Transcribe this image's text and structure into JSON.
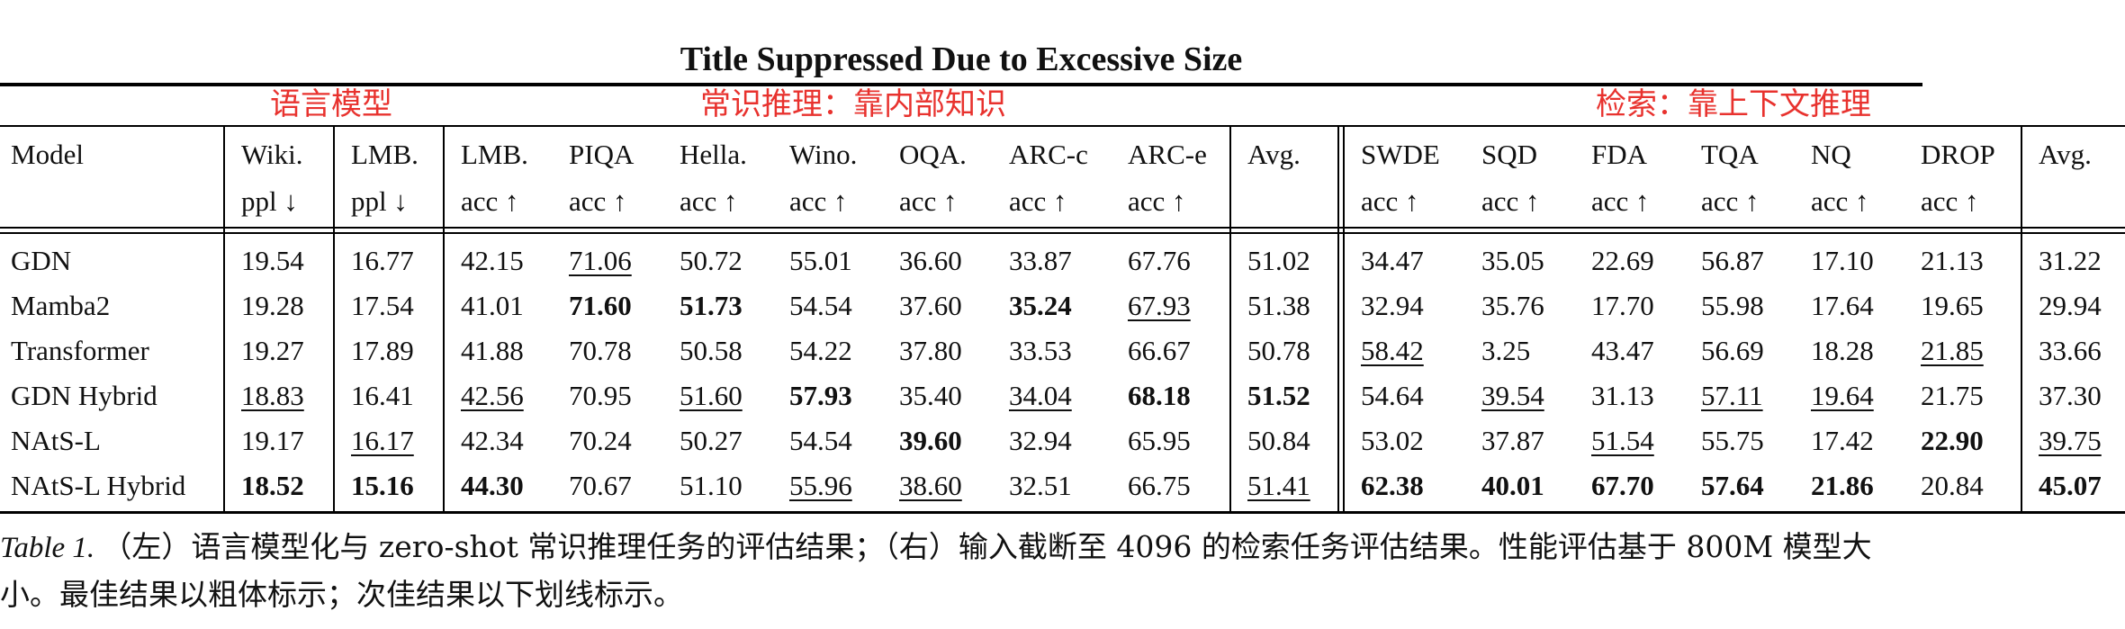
{
  "page_title": "Title Suppressed Due to Excessive Size",
  "groups": [
    {
      "label": "语言模型"
    },
    {
      "label": "常识推理：靠内部知识"
    },
    {
      "label": "检索：靠上下文推理"
    }
  ],
  "columns": [
    {
      "name": "Model",
      "metric": ""
    },
    {
      "name": "Wiki.",
      "metric": "ppl ↓"
    },
    {
      "name": "LMB.",
      "metric": "ppl ↓"
    },
    {
      "name": "LMB.",
      "metric": "acc ↑"
    },
    {
      "name": "PIQA",
      "metric": "acc ↑"
    },
    {
      "name": "Hella.",
      "metric": "acc ↑"
    },
    {
      "name": "Wino.",
      "metric": "acc ↑"
    },
    {
      "name": "OQA.",
      "metric": "acc ↑"
    },
    {
      "name": "ARC-c",
      "metric": "acc ↑"
    },
    {
      "name": "ARC-e",
      "metric": "acc ↑"
    },
    {
      "name": "Avg.",
      "metric": ""
    },
    {
      "name": "SWDE",
      "metric": "acc ↑"
    },
    {
      "name": "SQD",
      "metric": "acc ↑"
    },
    {
      "name": "FDA",
      "metric": "acc ↑"
    },
    {
      "name": "TQA",
      "metric": "acc ↑"
    },
    {
      "name": "NQ",
      "metric": "acc ↑"
    },
    {
      "name": "DROP",
      "metric": "acc ↑"
    },
    {
      "name": "Avg.",
      "metric": ""
    }
  ],
  "rows": [
    {
      "cells": [
        {
          "v": "GDN"
        },
        {
          "v": "19.54"
        },
        {
          "v": "16.77"
        },
        {
          "v": "42.15"
        },
        {
          "v": "71.06",
          "s": "u"
        },
        {
          "v": "50.72"
        },
        {
          "v": "55.01"
        },
        {
          "v": "36.60"
        },
        {
          "v": "33.87"
        },
        {
          "v": "67.76"
        },
        {
          "v": "51.02"
        },
        {
          "v": "34.47"
        },
        {
          "v": "35.05"
        },
        {
          "v": "22.69"
        },
        {
          "v": "56.87"
        },
        {
          "v": "17.10"
        },
        {
          "v": "21.13"
        },
        {
          "v": "31.22"
        }
      ]
    },
    {
      "cells": [
        {
          "v": "Mamba2"
        },
        {
          "v": "19.28"
        },
        {
          "v": "17.54"
        },
        {
          "v": "41.01"
        },
        {
          "v": "71.60",
          "s": "b"
        },
        {
          "v": "51.73",
          "s": "b"
        },
        {
          "v": "54.54"
        },
        {
          "v": "37.60"
        },
        {
          "v": "35.24",
          "s": "b"
        },
        {
          "v": "67.93",
          "s": "u"
        },
        {
          "v": "51.38"
        },
        {
          "v": "32.94"
        },
        {
          "v": "35.76"
        },
        {
          "v": "17.70"
        },
        {
          "v": "55.98"
        },
        {
          "v": "17.64"
        },
        {
          "v": "19.65"
        },
        {
          "v": "29.94"
        }
      ]
    },
    {
      "cells": [
        {
          "v": "Transformer"
        },
        {
          "v": "19.27"
        },
        {
          "v": "17.89"
        },
        {
          "v": "41.88"
        },
        {
          "v": "70.78"
        },
        {
          "v": "50.58"
        },
        {
          "v": "54.22"
        },
        {
          "v": "37.80"
        },
        {
          "v": "33.53"
        },
        {
          "v": "66.67"
        },
        {
          "v": "50.78"
        },
        {
          "v": "58.42",
          "s": "u"
        },
        {
          "v": "3.25"
        },
        {
          "v": "43.47"
        },
        {
          "v": "56.69"
        },
        {
          "v": "18.28"
        },
        {
          "v": "21.85",
          "s": "u"
        },
        {
          "v": "33.66"
        }
      ]
    },
    {
      "cells": [
        {
          "v": "GDN Hybrid"
        },
        {
          "v": "18.83",
          "s": "u"
        },
        {
          "v": "16.41"
        },
        {
          "v": "42.56",
          "s": "u"
        },
        {
          "v": "70.95"
        },
        {
          "v": "51.60",
          "s": "u"
        },
        {
          "v": "57.93",
          "s": "b"
        },
        {
          "v": "35.40"
        },
        {
          "v": "34.04",
          "s": "u"
        },
        {
          "v": "68.18",
          "s": "b"
        },
        {
          "v": "51.52",
          "s": "b"
        },
        {
          "v": "54.64"
        },
        {
          "v": "39.54",
          "s": "u"
        },
        {
          "v": "31.13"
        },
        {
          "v": "57.11",
          "s": "u"
        },
        {
          "v": "19.64",
          "s": "u"
        },
        {
          "v": "21.75"
        },
        {
          "v": "37.30"
        }
      ]
    },
    {
      "cells": [
        {
          "v": "NAtS-L"
        },
        {
          "v": "19.17"
        },
        {
          "v": "16.17",
          "s": "u"
        },
        {
          "v": "42.34"
        },
        {
          "v": "70.24"
        },
        {
          "v": "50.27"
        },
        {
          "v": "54.54"
        },
        {
          "v": "39.60",
          "s": "b"
        },
        {
          "v": "32.94"
        },
        {
          "v": "65.95"
        },
        {
          "v": "50.84"
        },
        {
          "v": "53.02"
        },
        {
          "v": "37.87"
        },
        {
          "v": "51.54",
          "s": "u"
        },
        {
          "v": "55.75"
        },
        {
          "v": "17.42"
        },
        {
          "v": "22.90",
          "s": "b"
        },
        {
          "v": "39.75",
          "s": "u"
        }
      ]
    },
    {
      "cells": [
        {
          "v": "NAtS-L Hybrid"
        },
        {
          "v": "18.52",
          "s": "b"
        },
        {
          "v": "15.16",
          "s": "b"
        },
        {
          "v": "44.30",
          "s": "b"
        },
        {
          "v": "70.67"
        },
        {
          "v": "51.10"
        },
        {
          "v": "55.96",
          "s": "u"
        },
        {
          "v": "38.60",
          "s": "u"
        },
        {
          "v": "32.51"
        },
        {
          "v": "66.75"
        },
        {
          "v": "51.41",
          "s": "u"
        },
        {
          "v": "62.38",
          "s": "b"
        },
        {
          "v": "40.01",
          "s": "b"
        },
        {
          "v": "67.70",
          "s": "b"
        },
        {
          "v": "57.64",
          "s": "b"
        },
        {
          "v": "21.86",
          "s": "b"
        },
        {
          "v": "20.84"
        },
        {
          "v": "45.07",
          "s": "b"
        }
      ]
    }
  ],
  "caption": {
    "label": "Table 1.",
    "text": "（左）语言模型化与 zero-shot 常识推理任务的评估结果；（右）输入截断至 4096 的检索任务评估结果。性能评估基于 800M 模型大小。最佳结果以粗体标示；次佳结果以下划线标示。"
  }
}
